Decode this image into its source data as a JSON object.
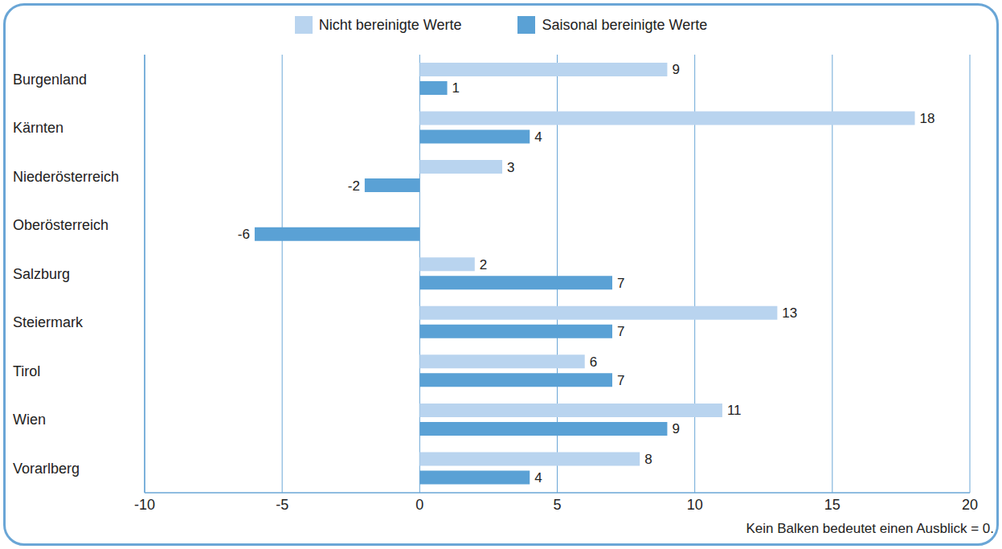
{
  "chart_data": {
    "type": "bar",
    "orientation": "horizontal",
    "categories": [
      "Burgenland",
      "Kärnten",
      "Niederösterreich",
      "Oberösterreich",
      "Salzburg",
      "Steiermark",
      "Tirol",
      "Wien",
      "Vorarlberg"
    ],
    "series": [
      {
        "name": "Nicht bereinigte Werte",
        "color": "#b9d4ef",
        "values": [
          9,
          18,
          3,
          0,
          2,
          13,
          6,
          11,
          8
        ]
      },
      {
        "name": "Saisonal bereinigte Werte",
        "color": "#5aa1d5",
        "values": [
          1,
          4,
          -2,
          -6,
          7,
          7,
          7,
          9,
          4
        ]
      }
    ],
    "xlim": [
      -10,
      20
    ],
    "xticks": [
      -10,
      -5,
      0,
      5,
      10,
      15,
      20
    ],
    "grid": true,
    "legend": "top",
    "data_labels": true,
    "annotation": "Kein Balken bedeutet einen Ausblick = 0."
  }
}
